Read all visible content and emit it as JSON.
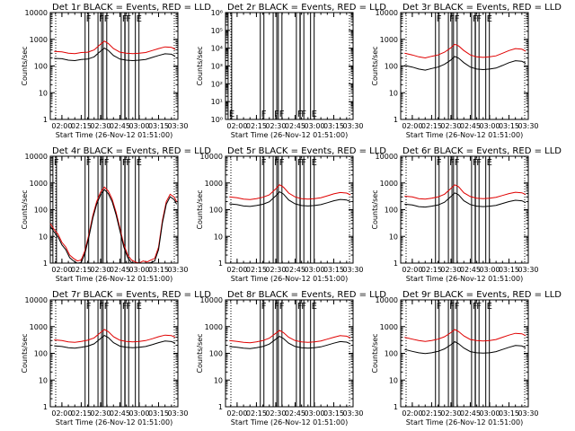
{
  "figure": {
    "events_color": "#000000",
    "lld_color": "#e00000",
    "axis_color": "#000000"
  },
  "chart_data": [
    {
      "type": "line",
      "title": "Det 1r  BLACK = Events, RED = LLD",
      "xlabel": "Start Time (26-Nov-12 01:51:00)",
      "ylabel": "Counts/sec",
      "ylog": true,
      "ylim": [
        1,
        10000
      ],
      "yticks": [
        "1",
        "10",
        "100",
        "1000",
        "10000"
      ],
      "xlim": [
        "01:51",
        "03:30"
      ],
      "xticks": [
        "02:00",
        "02:15",
        "02:30",
        "02:45",
        "03:00",
        "03:15",
        "03:30"
      ],
      "flags": [
        {
          "label": "F",
          "x": "02:18"
        },
        {
          "label": "F",
          "x": "02:28"
        },
        {
          "label": "F",
          "x": "02:32"
        },
        {
          "label": "F",
          "x": "02:46"
        },
        {
          "label": "F",
          "x": "02:49"
        },
        {
          "label": "E",
          "x": "02:57"
        }
      ],
      "events_scale": 0.55,
      "series": [
        {
          "name": "LLD",
          "x": [
            "01:54",
            "02:00",
            "02:05",
            "02:10",
            "02:15",
            "02:20",
            "02:25",
            "02:30",
            "02:33",
            "02:36",
            "02:40",
            "02:45",
            "02:50",
            "02:55",
            "03:00",
            "03:05",
            "03:10",
            "03:15",
            "03:20",
            "03:25",
            "03:28"
          ],
          "values": [
            350,
            340,
            300,
            290,
            320,
            330,
            400,
            650,
            850,
            700,
            450,
            330,
            300,
            290,
            300,
            320,
            380,
            450,
            520,
            500,
            420
          ]
        }
      ]
    },
    {
      "type": "line",
      "title": "Det 2r  BLACK = Events, RED = LLD",
      "xlabel": "Start Time (26-Nov-12 01:51:00)",
      "ylabel": "Counts/sec",
      "ylog": true,
      "ylim": [
        1,
        1000000
      ],
      "yticks": [
        "10⁰",
        "10¹",
        "10²",
        "10³",
        "10⁴",
        "10⁵",
        "10⁶"
      ],
      "xlim": [
        "01:51",
        "03:30"
      ],
      "xticks": [
        "02:00",
        "02:15",
        "02:30",
        "02:45",
        "03:00",
        "03:15",
        "03:30"
      ],
      "flags": [
        {
          "label": "E",
          "x": "01:53"
        },
        {
          "label": "F",
          "x": "02:18"
        },
        {
          "label": "F",
          "x": "02:28"
        },
        {
          "label": "F",
          "x": "02:32"
        },
        {
          "label": "F",
          "x": "02:46"
        },
        {
          "label": "F",
          "x": "02:49"
        },
        {
          "label": "E",
          "x": "02:57"
        }
      ],
      "events_scale": null,
      "series": []
    },
    {
      "type": "line",
      "title": "Det 3r  BLACK = Events, RED = LLD",
      "xlabel": "Start Time (26-Nov-12 01:51:00)",
      "ylabel": "Counts/sec",
      "ylog": true,
      "ylim": [
        1,
        10000
      ],
      "yticks": [
        "1",
        "10",
        "100",
        "1000",
        "10000"
      ],
      "xlim": [
        "01:51",
        "03:30"
      ],
      "xticks": [
        "02:00",
        "02:15",
        "02:30",
        "02:45",
        "03:00",
        "03:15",
        "03:30"
      ],
      "flags": [
        {
          "label": "F",
          "x": "02:18"
        },
        {
          "label": "F",
          "x": "02:28"
        },
        {
          "label": "F",
          "x": "02:32"
        },
        {
          "label": "F",
          "x": "02:46"
        },
        {
          "label": "F",
          "x": "02:49"
        },
        {
          "label": "E",
          "x": "02:57"
        }
      ],
      "events_scale": 0.35,
      "series": [
        {
          "name": "LLD",
          "x": [
            "01:54",
            "02:00",
            "02:05",
            "02:10",
            "02:15",
            "02:20",
            "02:25",
            "02:30",
            "02:33",
            "02:36",
            "02:40",
            "02:45",
            "02:50",
            "02:55",
            "03:00",
            "03:05",
            "03:10",
            "03:15",
            "03:20",
            "03:25",
            "03:28"
          ],
          "values": [
            300,
            260,
            220,
            200,
            230,
            260,
            330,
            480,
            650,
            560,
            380,
            260,
            220,
            210,
            220,
            240,
            300,
            380,
            450,
            430,
            360
          ]
        }
      ]
    },
    {
      "type": "line",
      "title": "Det 4r  BLACK = Events, RED = LLD",
      "xlabel": "Start Time (26-Nov-12 01:51:00)",
      "ylabel": "Counts/sec",
      "ylog": true,
      "ylim": [
        1,
        10000
      ],
      "yticks": [
        "1",
        "10",
        "100",
        "1000",
        "10000"
      ],
      "xlim": [
        "01:51",
        "03:30"
      ],
      "xticks": [
        "02:00",
        "02:15",
        "02:30",
        "02:45",
        "03:00",
        "03:15",
        "03:30"
      ],
      "flags": [
        {
          "label": "F",
          "x": "01:53"
        },
        {
          "label": "F",
          "x": "02:18"
        },
        {
          "label": "F",
          "x": "02:28"
        },
        {
          "label": "F",
          "x": "02:32"
        },
        {
          "label": "F",
          "x": "02:46"
        },
        {
          "label": "F",
          "x": "02:49"
        },
        {
          "label": "E",
          "x": "02:57"
        }
      ],
      "events_scale": 0.8,
      "series": [
        {
          "name": "LLD",
          "x": [
            "01:51",
            "01:54",
            "01:57",
            "02:00",
            "02:03",
            "02:06",
            "02:09",
            "02:12",
            "02:15",
            "02:18",
            "02:21",
            "02:24",
            "02:27",
            "02:30",
            "02:33",
            "02:36",
            "02:39",
            "02:42",
            "02:45",
            "02:48",
            "02:51",
            "02:54",
            "02:57",
            "03:00",
            "03:03",
            "03:06",
            "03:09",
            "03:12",
            "03:15",
            "03:18",
            "03:21",
            "03:24",
            "03:27",
            "03:29"
          ],
          "values": [
            30,
            18,
            12,
            6,
            4,
            2,
            1.5,
            1.2,
            1.3,
            3,
            12,
            60,
            200,
            450,
            700,
            500,
            250,
            80,
            20,
            5,
            2,
            1.3,
            1.1,
            1,
            1.2,
            1.1,
            1.3,
            1.5,
            4,
            40,
            200,
            380,
            300,
            200
          ]
        }
      ]
    },
    {
      "type": "line",
      "title": "Det 5r  BLACK = Events, RED = LLD",
      "xlabel": "Start Time (26-Nov-12 01:51:00)",
      "ylabel": "Counts/sec",
      "ylog": true,
      "ylim": [
        1,
        10000
      ],
      "yticks": [
        "1",
        "10",
        "100",
        "1000",
        "10000"
      ],
      "xlim": [
        "01:51",
        "03:30"
      ],
      "xticks": [
        "02:00",
        "02:15",
        "02:30",
        "02:45",
        "03:00",
        "03:15",
        "03:30"
      ],
      "flags": [
        {
          "label": "F",
          "x": "02:18"
        },
        {
          "label": "F",
          "x": "02:28"
        },
        {
          "label": "F",
          "x": "02:32"
        },
        {
          "label": "F",
          "x": "02:46"
        },
        {
          "label": "F",
          "x": "02:49"
        },
        {
          "label": "E",
          "x": "02:57"
        }
      ],
      "events_scale": 0.55,
      "series": [
        {
          "name": "LLD",
          "x": [
            "01:54",
            "02:00",
            "02:05",
            "02:10",
            "02:15",
            "02:20",
            "02:25",
            "02:30",
            "02:33",
            "02:36",
            "02:40",
            "02:45",
            "02:50",
            "02:55",
            "03:00",
            "03:05",
            "03:10",
            "03:15",
            "03:20",
            "03:25",
            "03:28"
          ],
          "values": [
            300,
            280,
            250,
            240,
            260,
            290,
            360,
            600,
            850,
            700,
            420,
            300,
            260,
            250,
            260,
            280,
            330,
            390,
            440,
            420,
            360
          ]
        }
      ]
    },
    {
      "type": "line",
      "title": "Det 6r  BLACK = Events, RED = LLD",
      "xlabel": "Start Time (26-Nov-12 01:51:00)",
      "ylabel": "Counts/sec",
      "ylog": true,
      "ylim": [
        1,
        10000
      ],
      "yticks": [
        "1",
        "10",
        "100",
        "1000",
        "10000"
      ],
      "xlim": [
        "01:51",
        "03:30"
      ],
      "xticks": [
        "02:00",
        "02:15",
        "02:30",
        "02:45",
        "03:00",
        "03:15",
        "03:30"
      ],
      "flags": [
        {
          "label": "F",
          "x": "02:18"
        },
        {
          "label": "F",
          "x": "02:28"
        },
        {
          "label": "F",
          "x": "02:32"
        },
        {
          "label": "F",
          "x": "02:46"
        },
        {
          "label": "F",
          "x": "02:49"
        },
        {
          "label": "E",
          "x": "02:57"
        }
      ],
      "events_scale": 0.5,
      "series": [
        {
          "name": "LLD",
          "x": [
            "01:54",
            "02:00",
            "02:05",
            "02:10",
            "02:15",
            "02:20",
            "02:25",
            "02:30",
            "02:33",
            "02:36",
            "02:40",
            "02:45",
            "02:50",
            "02:55",
            "03:00",
            "03:05",
            "03:10",
            "03:15",
            "03:20",
            "03:25",
            "03:28"
          ],
          "values": [
            320,
            300,
            260,
            250,
            270,
            300,
            380,
            620,
            850,
            720,
            430,
            310,
            270,
            260,
            270,
            290,
            340,
            400,
            450,
            430,
            370
          ]
        }
      ]
    },
    {
      "type": "line",
      "title": "Det 7r  BLACK = Events, RED = LLD",
      "xlabel": "Start Time (26-Nov-12 01:51:00)",
      "ylabel": "Counts/sec",
      "ylog": true,
      "ylim": [
        1,
        10000
      ],
      "yticks": [
        "1",
        "10",
        "100",
        "1000",
        "10000"
      ],
      "xlim": [
        "01:51",
        "03:30"
      ],
      "xticks": [
        "02:00",
        "02:15",
        "02:30",
        "02:45",
        "03:00",
        "03:15",
        "03:30"
      ],
      "flags": [
        {
          "label": "F",
          "x": "02:18"
        },
        {
          "label": "F",
          "x": "02:28"
        },
        {
          "label": "F",
          "x": "02:32"
        },
        {
          "label": "F",
          "x": "02:46"
        },
        {
          "label": "F",
          "x": "02:49"
        },
        {
          "label": "E",
          "x": "02:57"
        }
      ],
      "events_scale": 0.6,
      "series": [
        {
          "name": "LLD",
          "x": [
            "01:54",
            "02:00",
            "02:05",
            "02:10",
            "02:15",
            "02:20",
            "02:25",
            "02:30",
            "02:33",
            "02:36",
            "02:40",
            "02:45",
            "02:50",
            "02:55",
            "03:00",
            "03:05",
            "03:10",
            "03:15",
            "03:20",
            "03:25",
            "03:28"
          ],
          "values": [
            320,
            300,
            270,
            260,
            280,
            310,
            380,
            600,
            780,
            650,
            420,
            310,
            280,
            270,
            280,
            300,
            350,
            420,
            480,
            460,
            400
          ]
        }
      ]
    },
    {
      "type": "line",
      "title": "Det 8r  BLACK = Events, RED = LLD",
      "xlabel": "Start Time (26-Nov-12 01:51:00)",
      "ylabel": "Counts/sec",
      "ylog": true,
      "ylim": [
        1,
        10000
      ],
      "yticks": [
        "1",
        "10",
        "100",
        "1000",
        "10000"
      ],
      "xlim": [
        "01:51",
        "03:30"
      ],
      "xticks": [
        "02:00",
        "02:15",
        "02:30",
        "02:45",
        "03:00",
        "03:15",
        "03:30"
      ],
      "flags": [
        {
          "label": "F",
          "x": "02:18"
        },
        {
          "label": "F",
          "x": "02:28"
        },
        {
          "label": "F",
          "x": "02:32"
        },
        {
          "label": "F",
          "x": "02:46"
        },
        {
          "label": "F",
          "x": "02:49"
        },
        {
          "label": "E",
          "x": "02:57"
        }
      ],
      "events_scale": 0.6,
      "series": [
        {
          "name": "LLD",
          "x": [
            "01:54",
            "02:00",
            "02:05",
            "02:10",
            "02:15",
            "02:20",
            "02:25",
            "02:30",
            "02:33",
            "02:36",
            "02:40",
            "02:45",
            "02:50",
            "02:55",
            "03:00",
            "03:05",
            "03:10",
            "03:15",
            "03:20",
            "03:25",
            "03:28"
          ],
          "values": [
            300,
            280,
            260,
            250,
            270,
            300,
            370,
            560,
            720,
            600,
            400,
            300,
            270,
            260,
            270,
            290,
            340,
            400,
            460,
            440,
            380
          ]
        }
      ]
    },
    {
      "type": "line",
      "title": "Det 9r  BLACK = Events, RED = LLD",
      "xlabel": "Start Time (26-Nov-12 01:51:00)",
      "ylabel": "Counts/sec",
      "ylog": true,
      "ylim": [
        1,
        10000
      ],
      "yticks": [
        "1",
        "10",
        "100",
        "1000",
        "10000"
      ],
      "xlim": [
        "01:51",
        "03:30"
      ],
      "xticks": [
        "02:00",
        "02:15",
        "02:30",
        "02:45",
        "03:00",
        "03:15",
        "03:30"
      ],
      "flags": [
        {
          "label": "F",
          "x": "02:18"
        },
        {
          "label": "F",
          "x": "02:28"
        },
        {
          "label": "F",
          "x": "02:32"
        },
        {
          "label": "F",
          "x": "02:46"
        },
        {
          "label": "F",
          "x": "02:49"
        },
        {
          "label": "E",
          "x": "02:57"
        }
      ],
      "events_scale": 0.35,
      "series": [
        {
          "name": "LLD",
          "x": [
            "01:54",
            "02:00",
            "02:05",
            "02:10",
            "02:15",
            "02:20",
            "02:25",
            "02:30",
            "02:33",
            "02:36",
            "02:40",
            "02:45",
            "02:50",
            "02:55",
            "03:00",
            "03:05",
            "03:10",
            "03:15",
            "03:20",
            "03:25",
            "03:28"
          ],
          "values": [
            400,
            340,
            300,
            280,
            300,
            340,
            420,
            600,
            780,
            650,
            450,
            330,
            300,
            290,
            300,
            330,
            400,
            480,
            560,
            540,
            460
          ]
        }
      ]
    }
  ]
}
